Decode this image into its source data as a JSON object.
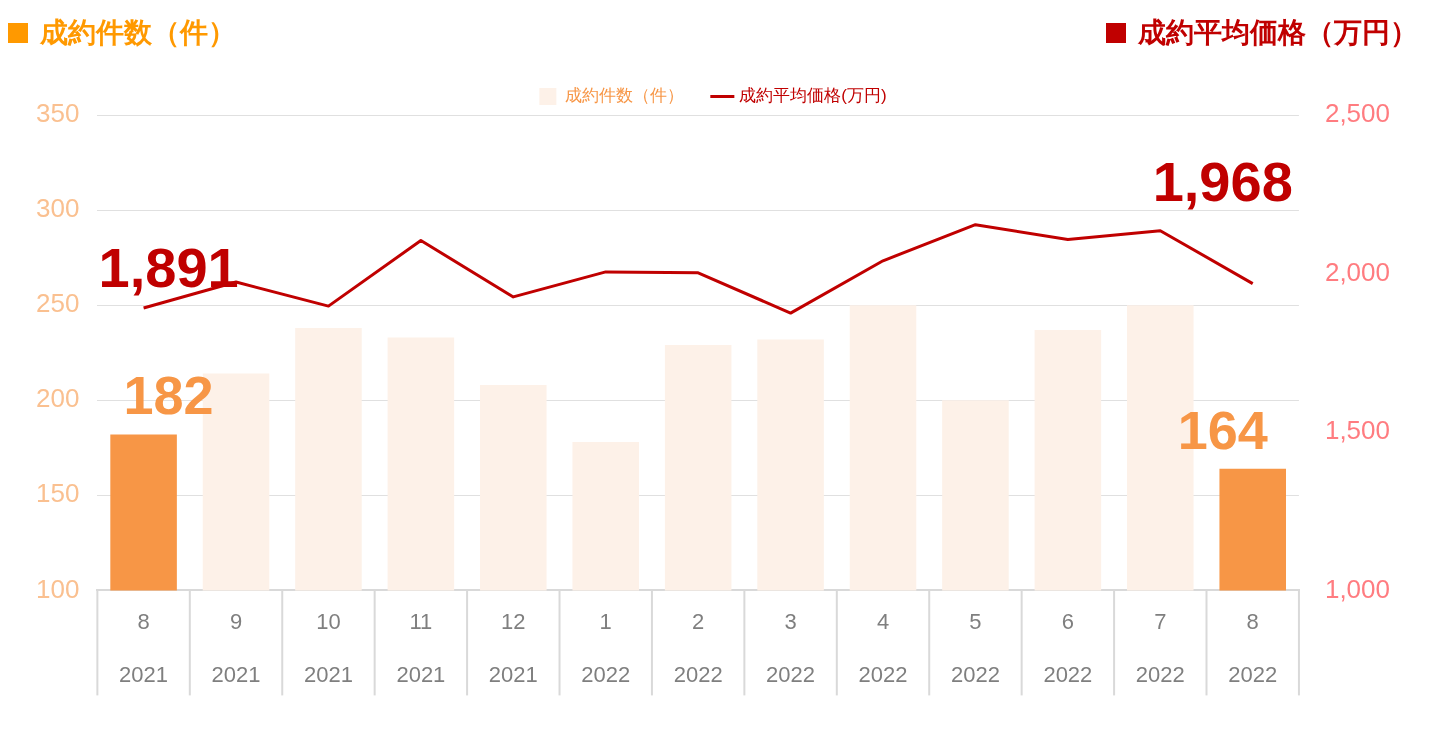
{
  "chart_data": {
    "type": "bar",
    "ylabel": "成約件数（件）",
    "y2label": "成約平均価格（万円）",
    "categories": [
      "8\n2021",
      "9\n2021",
      "10\n2021",
      "11\n2021",
      "12\n2021",
      "1\n2022",
      "2\n2022",
      "3\n2022",
      "4\n2022",
      "5\n2022",
      "6\n2022",
      "7\n2022",
      "8\n2022"
    ],
    "series": [
      {
        "name": "成約件数（件）",
        "color": "#fdf1e8",
        "colors": [
          "#f79646",
          "#fdf1e8",
          "#fdf1e8",
          "#fdf1e8",
          "#fdf1e8",
          "#fdf1e8",
          "#fdf1e8",
          "#fdf1e8",
          "#fdf1e8",
          "#fdf1e8",
          "#fdf1e8",
          "#fdf1e8",
          "#f79646"
        ],
        "values": [
          182,
          214,
          238,
          233,
          208,
          178,
          229,
          232,
          250,
          200,
          237,
          250,
          164
        ],
        "value_labels": [
          "182",
          null,
          null,
          null,
          null,
          null,
          null,
          null,
          null,
          null,
          null,
          null,
          "164"
        ]
      },
      {
        "name": "成約平均価格(万円)",
        "type": "line",
        "axis": "y2",
        "color": "#c00000",
        "values": [
          1891,
          1973,
          1897,
          2104,
          1926,
          2005,
          2002,
          1875,
          2040,
          2154,
          2107,
          2135,
          1968
        ],
        "value_labels": [
          "1,891",
          null,
          null,
          null,
          null,
          null,
          null,
          null,
          null,
          null,
          null,
          null,
          "1,968"
        ]
      }
    ],
    "ylim": [
      100,
      350
    ],
    "yticks": [
      100,
      150,
      200,
      250,
      300,
      350
    ],
    "y2lim": [
      1000,
      2500
    ],
    "y2ticks": [
      {
        "value": 1000,
        "label": "1,000"
      },
      {
        "value": 1500,
        "label": "1,500"
      },
      {
        "value": 2000,
        "label": "2,000"
      },
      {
        "value": 2500,
        "label": "2,500"
      }
    ],
    "grid": "y",
    "legend": "top",
    "marker": "none",
    "line_style": "solid"
  }
}
